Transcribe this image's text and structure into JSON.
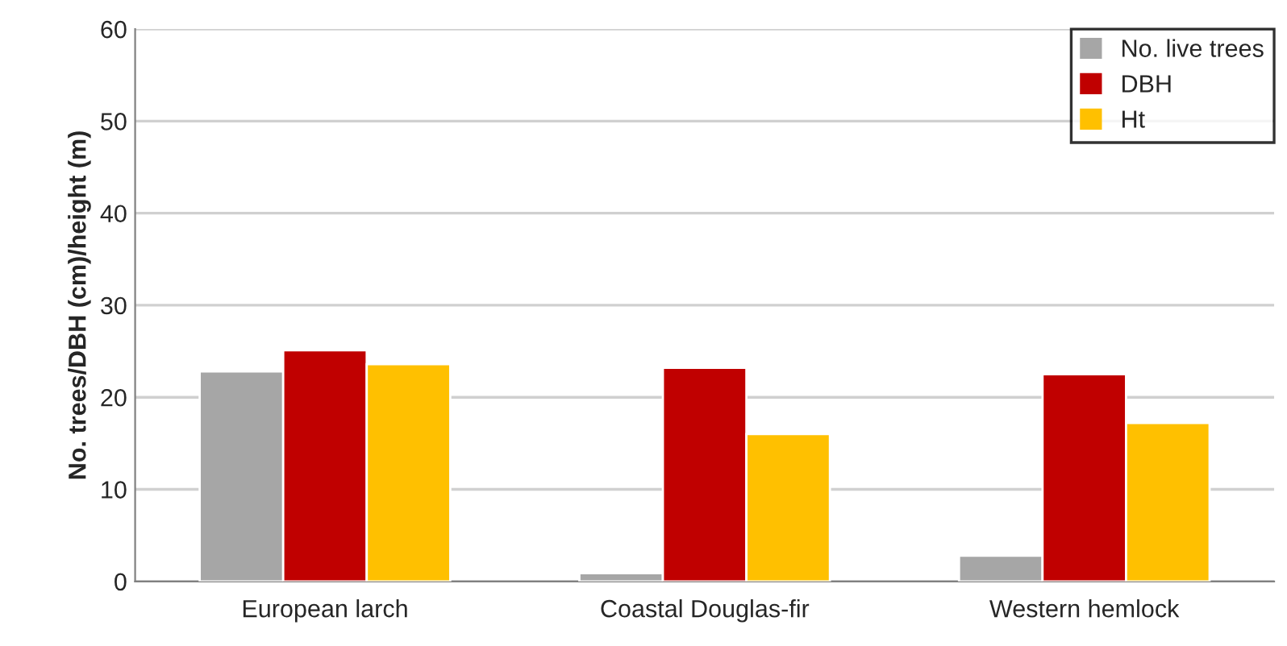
{
  "chart_data": {
    "type": "bar",
    "ylabel": "No. trees/DBH (cm)/height (m)",
    "categories": [
      "European larch",
      "Coastal Douglas-fir",
      "Western hemlock"
    ],
    "series": [
      {
        "name": "No. live trees",
        "color": "#a6a6a6",
        "values": [
          22.8,
          0.9,
          2.8
        ]
      },
      {
        "name": "DBH",
        "color": "#c00000",
        "values": [
          25.1,
          23.2,
          22.5
        ]
      },
      {
        "name": "Ht",
        "color": "#ffc000",
        "values": [
          23.6,
          16.0,
          17.2
        ]
      }
    ],
    "ylim": [
      0,
      60
    ],
    "yticks": [
      0,
      10,
      20,
      30,
      40,
      50,
      60
    ],
    "grid": "y",
    "legend": "top right"
  }
}
